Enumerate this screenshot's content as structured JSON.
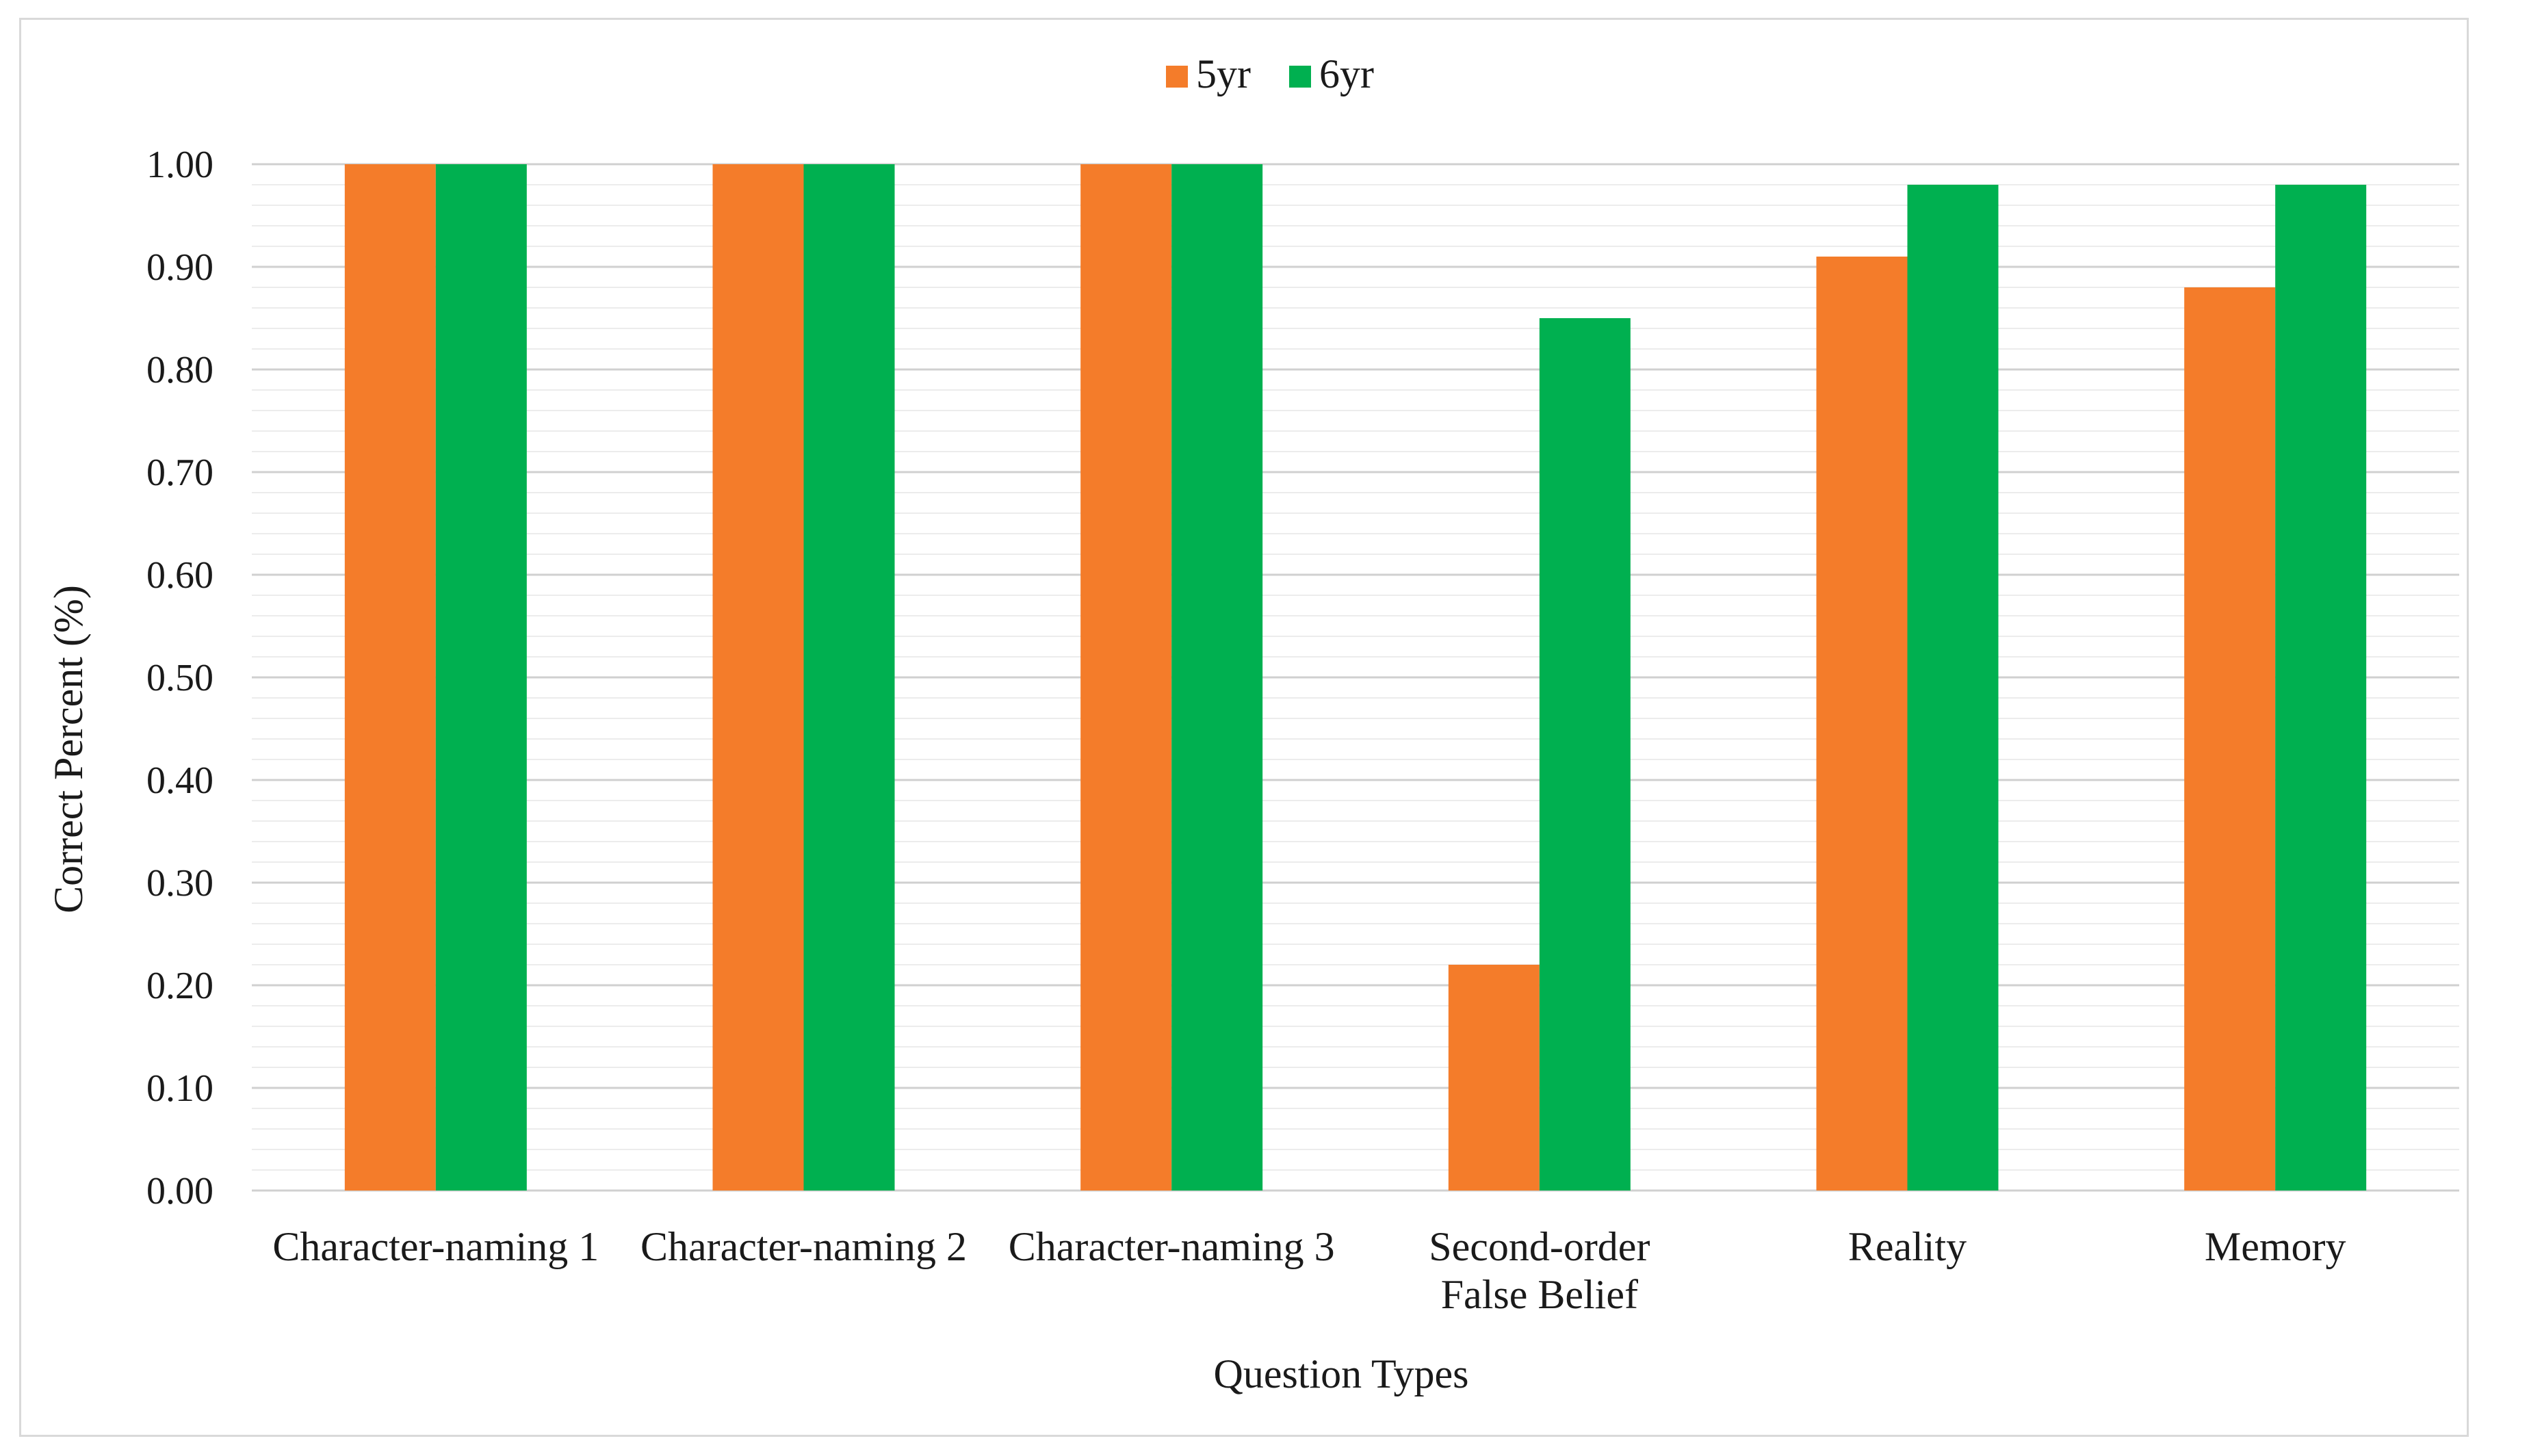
{
  "chart_data": {
    "type": "bar",
    "title": "",
    "xlabel": "Question Types",
    "ylabel": "Correct Percent (%)",
    "categories": [
      [
        "Character-naming 1"
      ],
      [
        "Character-naming 2"
      ],
      [
        "Character-naming 3"
      ],
      [
        "Second-order",
        "False Belief"
      ],
      [
        "Reality"
      ],
      [
        "Memory"
      ]
    ],
    "series": [
      {
        "name": "5yr",
        "color": "#f47c2a",
        "values": [
          1.0,
          1.0,
          1.0,
          0.22,
          0.91,
          0.88
        ]
      },
      {
        "name": "6yr",
        "color": "#00b050",
        "values": [
          1.0,
          1.0,
          1.0,
          0.85,
          0.98,
          0.98
        ]
      }
    ],
    "ylim": [
      0,
      1.0
    ],
    "yticks": [
      "0.00",
      "0.10",
      "0.20",
      "0.30",
      "0.40",
      "0.50",
      "0.60",
      "0.70",
      "0.80",
      "0.90",
      "1.00"
    ],
    "grid": true,
    "legend_position": "top-center"
  }
}
